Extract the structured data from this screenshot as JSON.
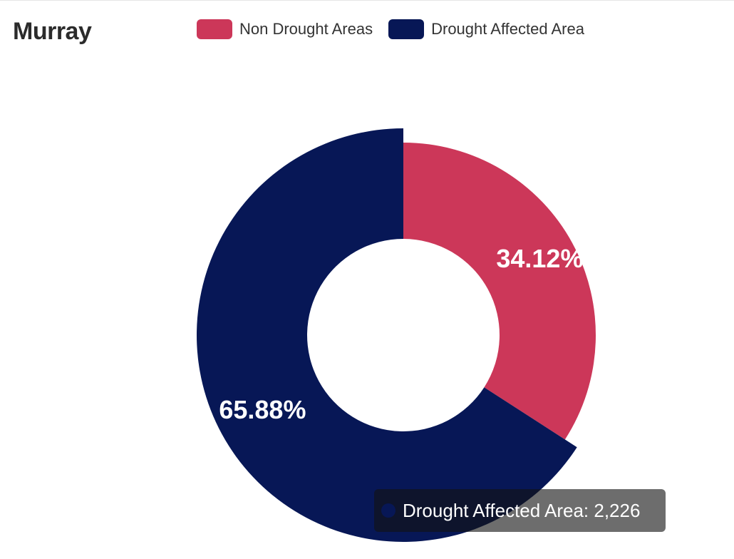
{
  "chart_data": {
    "type": "pie",
    "title": "Murray",
    "categories": [
      "Non Drought Areas",
      "Drought Affected Area"
    ],
    "values": [
      34.12,
      65.88
    ],
    "labels": [
      "34.12%",
      "65.88%"
    ],
    "colors": [
      "#cc3759",
      "#071756"
    ],
    "donut": true,
    "legend_position": "top",
    "tooltip": {
      "series": "Drought Affected Area",
      "text": "Drought Affected Area: 2,226",
      "color": "#071756"
    }
  }
}
